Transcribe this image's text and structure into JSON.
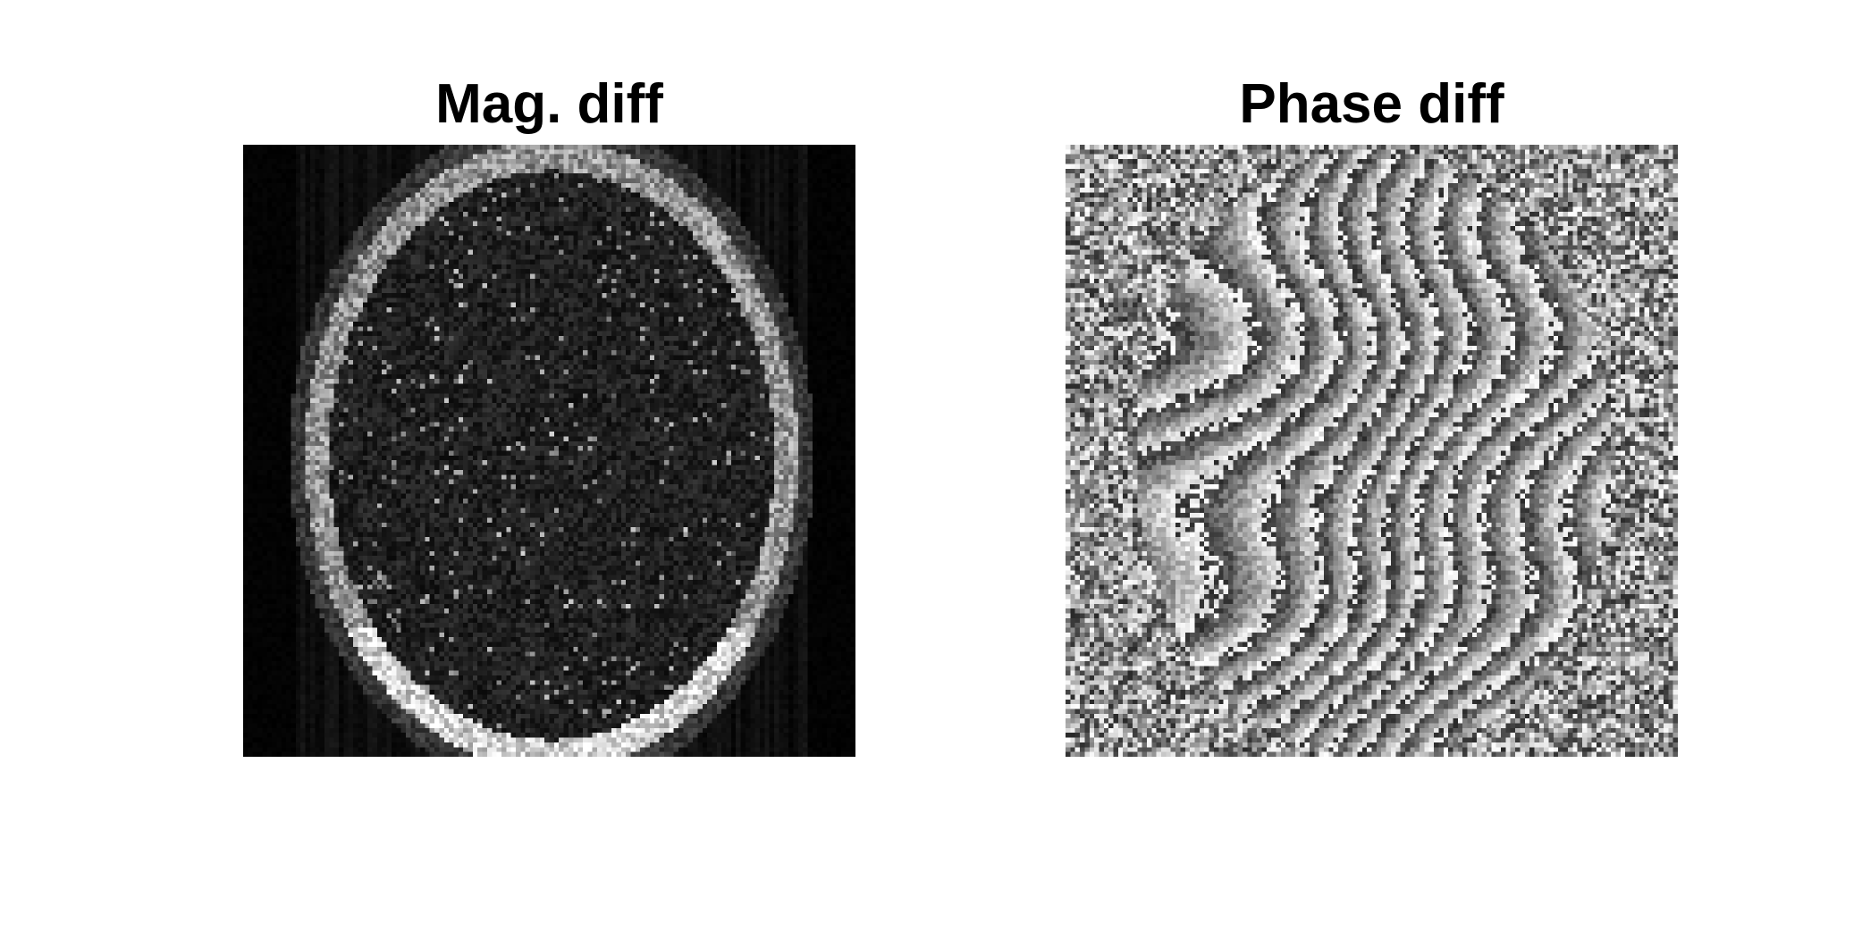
{
  "figure": {
    "panels": [
      {
        "title": "Mag. diff",
        "image": "magnitude-difference-mri-brain",
        "colormap": "gray"
      },
      {
        "title": "Phase diff",
        "image": "phase-difference-mri-brain",
        "colormap": "gray"
      }
    ]
  }
}
